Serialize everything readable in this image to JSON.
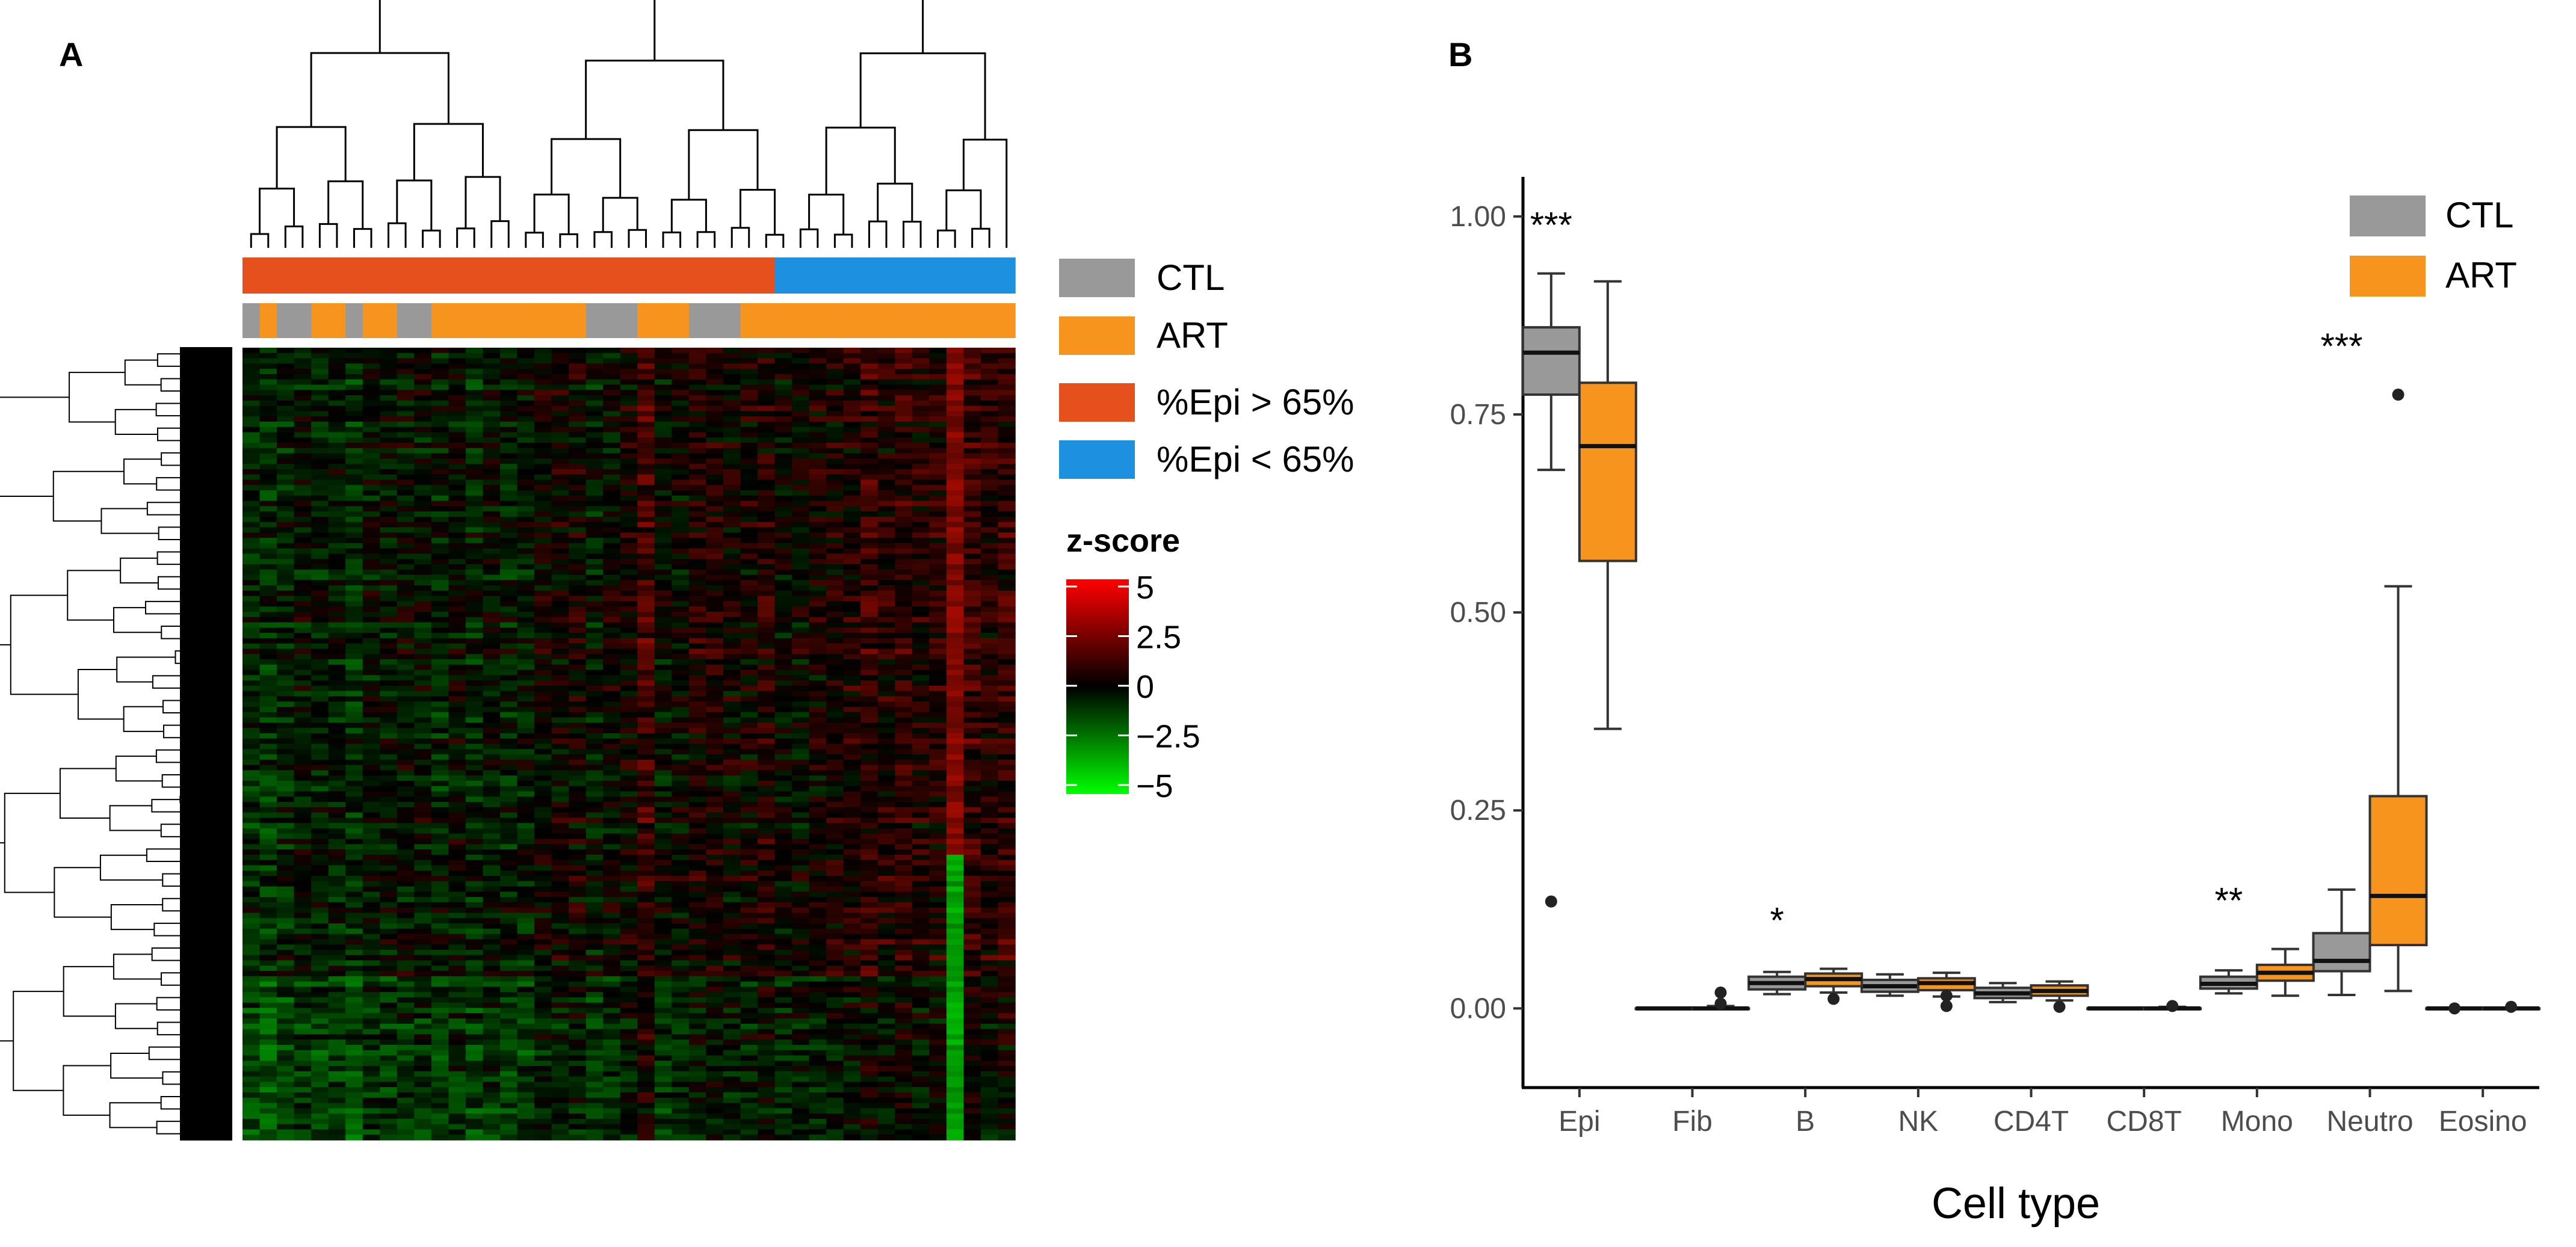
{
  "panels": {
    "a_label": "A",
    "b_label": "B"
  },
  "colors": {
    "ctl": "#999999",
    "art": "#F7941D",
    "epi_high": "#E5501D",
    "epi_low": "#1E90E0",
    "z_high": "#FF0000",
    "z_mid": "#000000",
    "z_low": "#00FF00"
  },
  "heatmap": {
    "legend": {
      "groups": [
        {
          "label": "CTL",
          "color": "#999999"
        },
        {
          "label": "ART",
          "color": "#F7941D"
        },
        {
          "label": "%Epi > 65%",
          "color": "#E5501D"
        },
        {
          "label": "%Epi < 65%",
          "color": "#1E90E0"
        }
      ],
      "zscore_title": "z-score",
      "zscore_ticks": [
        {
          "value": 5,
          "label": "5"
        },
        {
          "value": 2.5,
          "label": "2.5"
        },
        {
          "value": 0,
          "label": "0"
        },
        {
          "value": -2.5,
          "label": "−2.5"
        },
        {
          "value": -5,
          "label": "−5"
        }
      ]
    },
    "n_columns": 45,
    "epi_group_per_column": [
      "high",
      "high",
      "high",
      "high",
      "high",
      "high",
      "high",
      "high",
      "high",
      "high",
      "high",
      "high",
      "high",
      "high",
      "high",
      "high",
      "high",
      "high",
      "high",
      "high",
      "high",
      "high",
      "high",
      "high",
      "high",
      "high",
      "high",
      "high",
      "high",
      "high",
      "high",
      "low",
      "low",
      "low",
      "low",
      "low",
      "low",
      "low",
      "low",
      "low",
      "low",
      "low",
      "low",
      "low",
      "low"
    ],
    "treatment_per_column": [
      "CTL",
      "ART",
      "CTL",
      "CTL",
      "ART",
      "ART",
      "CTL",
      "ART",
      "ART",
      "CTL",
      "CTL",
      "ART",
      "ART",
      "ART",
      "ART",
      "ART",
      "ART",
      "ART",
      "ART",
      "ART",
      "CTL",
      "CTL",
      "CTL",
      "ART",
      "ART",
      "ART",
      "CTL",
      "CTL",
      "CTL",
      "ART",
      "ART",
      "ART",
      "ART",
      "ART",
      "ART",
      "ART",
      "ART",
      "ART",
      "ART",
      "ART",
      "ART",
      "ART",
      "ART",
      "ART",
      "ART"
    ]
  },
  "chart_data": {
    "type": "box",
    "title": "",
    "xlabel": "Cell type",
    "ylabel": "",
    "ylim": [
      -0.1,
      1.05
    ],
    "yticks": [
      0.0,
      0.25,
      0.5,
      0.75,
      1.0
    ],
    "ytick_labels": [
      "0.00",
      "0.25",
      "0.50",
      "0.75",
      "1.00"
    ],
    "categories": [
      "Epi",
      "Fib",
      "B",
      "NK",
      "CD4T",
      "CD8T",
      "Mono",
      "Neutro",
      "Eosino"
    ],
    "significance": [
      "***",
      "",
      "*",
      "",
      "",
      "",
      "**",
      "***",
      ""
    ],
    "legend": [
      {
        "name": "CTL",
        "color": "#999999"
      },
      {
        "name": "ART",
        "color": "#F7941D"
      }
    ],
    "series": [
      {
        "name": "CTL",
        "color": "#999999",
        "boxes": [
          {
            "min": 0.68,
            "q1": 0.775,
            "median": 0.828,
            "q3": 0.86,
            "max": 0.928,
            "outliers": [
              0.135
            ]
          },
          {
            "min": 0.0,
            "q1": 0.0,
            "median": 0.0,
            "q3": 0.0,
            "max": 0.0,
            "outliers": []
          },
          {
            "min": 0.018,
            "q1": 0.024,
            "median": 0.032,
            "q3": 0.04,
            "max": 0.046,
            "outliers": []
          },
          {
            "min": 0.016,
            "q1": 0.021,
            "median": 0.028,
            "q3": 0.036,
            "max": 0.043,
            "outliers": []
          },
          {
            "min": 0.008,
            "q1": 0.013,
            "median": 0.019,
            "q3": 0.026,
            "max": 0.032,
            "outliers": []
          },
          {
            "min": 0.0,
            "q1": 0.0,
            "median": 0.0,
            "q3": 0.0,
            "max": 0.0,
            "outliers": []
          },
          {
            "min": 0.019,
            "q1": 0.025,
            "median": 0.031,
            "q3": 0.04,
            "max": 0.048,
            "outliers": []
          },
          {
            "min": 0.017,
            "q1": 0.047,
            "median": 0.06,
            "q3": 0.095,
            "max": 0.15,
            "outliers": []
          },
          {
            "min": 0.0,
            "q1": 0.0,
            "median": 0.0,
            "q3": 0.0,
            "max": 0.0,
            "outliers": [
              0.0
            ]
          }
        ]
      },
      {
        "name": "ART",
        "color": "#F7941D",
        "boxes": [
          {
            "min": 0.353,
            "q1": 0.565,
            "median": 0.71,
            "q3": 0.79,
            "max": 0.918,
            "outliers": []
          },
          {
            "min": 0.0,
            "q1": 0.0,
            "median": 0.0,
            "q3": 0.0,
            "max": 0.003,
            "outliers": [
              0.02,
              0.006
            ]
          },
          {
            "min": 0.02,
            "q1": 0.028,
            "median": 0.037,
            "q3": 0.044,
            "max": 0.05,
            "outliers": [
              0.012
            ]
          },
          {
            "min": 0.015,
            "q1": 0.023,
            "median": 0.032,
            "q3": 0.038,
            "max": 0.045,
            "outliers": [
              0.003,
              0.016
            ]
          },
          {
            "min": 0.01,
            "q1": 0.016,
            "median": 0.022,
            "q3": 0.029,
            "max": 0.034,
            "outliers": [
              0.002
            ]
          },
          {
            "min": 0.0,
            "q1": 0.0,
            "median": 0.0,
            "q3": 0.0,
            "max": 0.002,
            "outliers": [
              0.003
            ]
          },
          {
            "min": 0.016,
            "q1": 0.035,
            "median": 0.045,
            "q3": 0.055,
            "max": 0.075,
            "outliers": []
          },
          {
            "min": 0.022,
            "q1": 0.08,
            "median": 0.142,
            "q3": 0.268,
            "max": 0.533,
            "outliers": [
              0.775
            ]
          },
          {
            "min": 0.0,
            "q1": 0.0,
            "median": 0.0,
            "q3": 0.0,
            "max": 0.0,
            "outliers": [
              0.002
            ]
          }
        ]
      }
    ]
  }
}
